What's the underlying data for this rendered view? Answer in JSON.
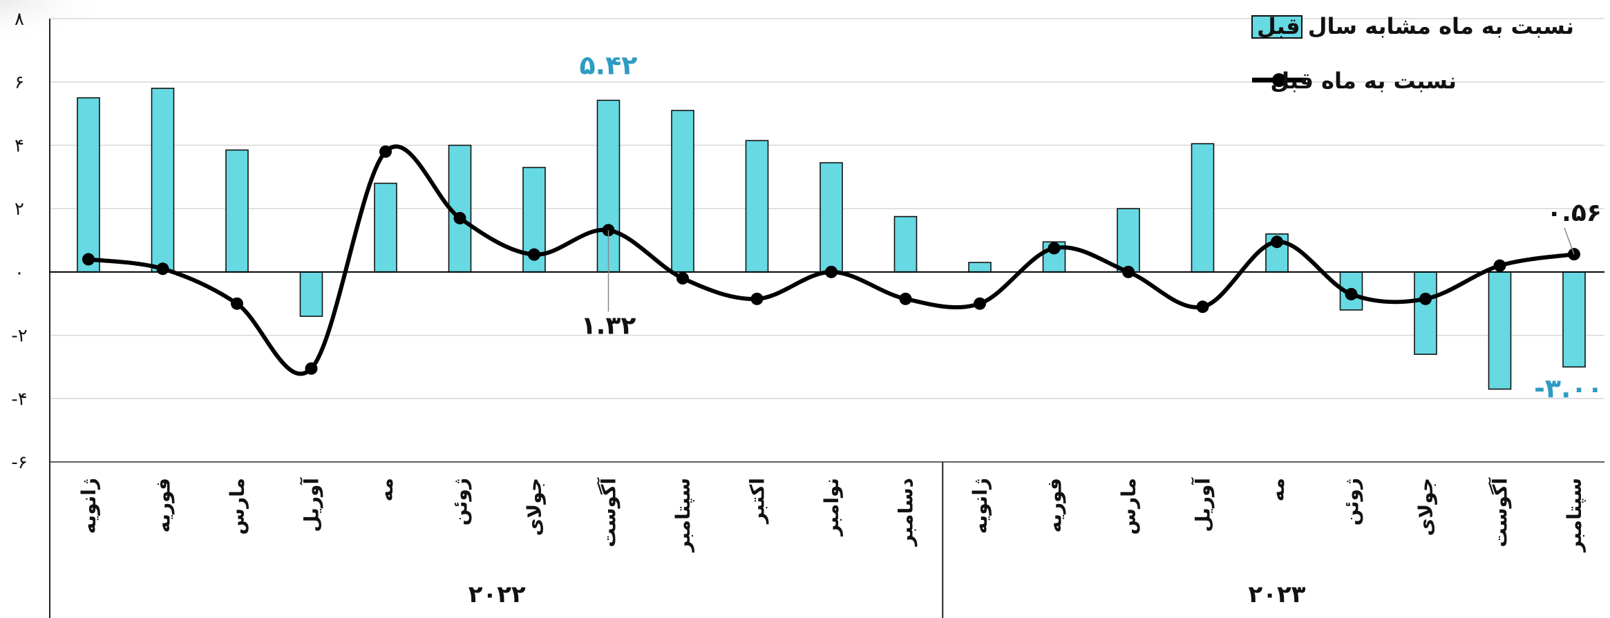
{
  "chart_data": {
    "type": "bar",
    "colors": {
      "bar_fill": "#66D9E3",
      "bar_stroke": "#111111",
      "line": "#000000",
      "highlight": "#2E9BC3",
      "grid": "#D6D6D6"
    },
    "y_axis": {
      "min": -6,
      "max": 8,
      "step": 2,
      "tick_labels": [
        "-۶",
        "-۴",
        "-۲",
        "۰",
        "۲",
        "۴",
        "۶",
        "۸"
      ]
    },
    "categories": [
      "ژانویه",
      "فوریه",
      "مارس",
      "آوریل",
      "مه",
      "ژوئن",
      "جولای",
      "آگوست",
      "سپتامبر",
      "اکتبر",
      "نوامبر",
      "دسامبر",
      "ژانویه",
      "فوریه",
      "مارس",
      "آوریل",
      "مه",
      "ژوئن",
      "جولای",
      "آگوست",
      "سپتامبر"
    ],
    "groups": [
      {
        "label": "۲۰۲۲",
        "start": 0,
        "count": 12
      },
      {
        "label": "۲۰۲۳",
        "start": 12,
        "count": 9
      }
    ],
    "series": [
      {
        "name": "نسبت به ماه مشابه سال قبل",
        "kind": "bar",
        "values": [
          5.5,
          5.8,
          3.85,
          -1.4,
          2.8,
          4.0,
          3.3,
          5.42,
          5.1,
          4.15,
          3.45,
          1.75,
          0.3,
          0.95,
          2.0,
          4.05,
          1.2,
          -1.2,
          -2.6,
          -3.7,
          -3.0
        ]
      },
      {
        "name": "نسبت به ماه قبل",
        "kind": "line",
        "values": [
          0.4,
          0.1,
          -1.0,
          -3.05,
          3.8,
          1.7,
          0.55,
          1.32,
          -0.2,
          -0.85,
          0.0,
          -0.85,
          -1.0,
          0.75,
          0.0,
          -1.1,
          0.95,
          -0.7,
          -0.85,
          0.2,
          0.56
        ]
      }
    ],
    "annotations": [
      {
        "text": "۵.۴۲",
        "series": 0,
        "index": 7
      },
      {
        "text": "۱.۳۲",
        "series": 1,
        "index": 7
      },
      {
        "text": "۰.۵۶",
        "series": 1,
        "index": 20
      },
      {
        "text": "-۳.۰۰",
        "series": 0,
        "index": 20
      }
    ],
    "legend": {
      "position": "top-right"
    }
  }
}
